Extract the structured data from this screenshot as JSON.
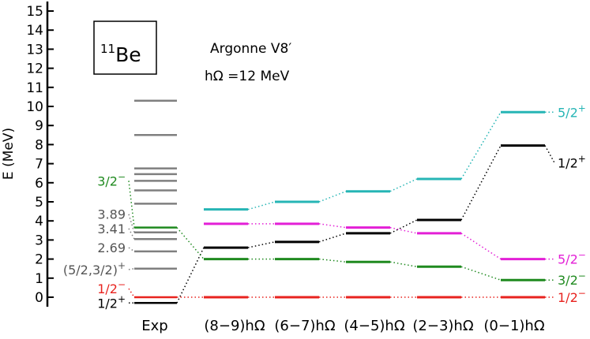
{
  "chart_data": {
    "type": "level-scheme",
    "nucleus": {
      "mass": "11",
      "symbol": "Be"
    },
    "interaction": "Argonne V8′",
    "basis": "hΩ =12 MeV",
    "ylabel": "E (MeV)",
    "ylim": [
      -0.5,
      15.5
    ],
    "yticks": [
      0,
      1,
      2,
      3,
      4,
      5,
      6,
      7,
      8,
      9,
      10,
      11,
      12,
      13,
      14,
      15
    ],
    "columns": [
      "Exp",
      "(8−9)hΩ",
      "(6−7)hΩ",
      "(4−5)hΩ",
      "(2−3)hΩ",
      "(0−1)hΩ"
    ],
    "exp_levels": [
      {
        "energy": -0.3,
        "color": "#000000",
        "label": "1/2",
        "parity": "+"
      },
      {
        "energy": 0.0,
        "color": "#e8231f",
        "label": "1/2",
        "parity": "−"
      },
      {
        "energy": 1.5,
        "color": "#7f7f7f",
        "label": "(5/2,3/2)",
        "parity": "+"
      },
      {
        "energy": 2.4,
        "color": "#7f7f7f",
        "label": "2.69",
        "parity": ""
      },
      {
        "energy": 3.05,
        "color": "#7f7f7f",
        "label": "3.41",
        "parity": ""
      },
      {
        "energy": 3.4,
        "color": "#7f7f7f",
        "label": "3.89",
        "parity": ""
      },
      {
        "energy": 3.65,
        "color": "#1f8a1f",
        "label": "3/2",
        "parity": "−"
      },
      {
        "energy": 4.9,
        "color": "#7f7f7f",
        "label": "",
        "parity": ""
      },
      {
        "energy": 5.6,
        "color": "#7f7f7f",
        "label": "",
        "parity": ""
      },
      {
        "energy": 6.1,
        "color": "#7f7f7f",
        "label": "",
        "parity": ""
      },
      {
        "energy": 6.45,
        "color": "#7f7f7f",
        "label": "",
        "parity": ""
      },
      {
        "energy": 6.75,
        "color": "#7f7f7f",
        "label": "",
        "parity": ""
      },
      {
        "energy": 8.5,
        "color": "#7f7f7f",
        "label": "",
        "parity": ""
      },
      {
        "energy": 10.3,
        "color": "#7f7f7f",
        "label": "",
        "parity": ""
      }
    ],
    "series": [
      {
        "label": "5/2",
        "parity": "+",
        "color": "#26b5b5",
        "values": [
          4.6,
          5.0,
          5.55,
          6.2,
          9.7
        ]
      },
      {
        "label": "1/2",
        "parity": "+",
        "color": "#000000",
        "values": [
          2.6,
          2.9,
          3.35,
          4.05,
          7.95
        ]
      },
      {
        "label": "5/2",
        "parity": "−",
        "color": "#e31fd6",
        "values": [
          3.85,
          3.85,
          3.65,
          3.35,
          2.0
        ]
      },
      {
        "label": "3/2",
        "parity": "−",
        "color": "#1f8a1f",
        "values": [
          2.0,
          2.0,
          1.85,
          1.6,
          0.9
        ]
      },
      {
        "label": "1/2",
        "parity": "−",
        "color": "#e8231f",
        "values": [
          0.0,
          0.0,
          0.0,
          0.0,
          0.0
        ]
      }
    ]
  }
}
